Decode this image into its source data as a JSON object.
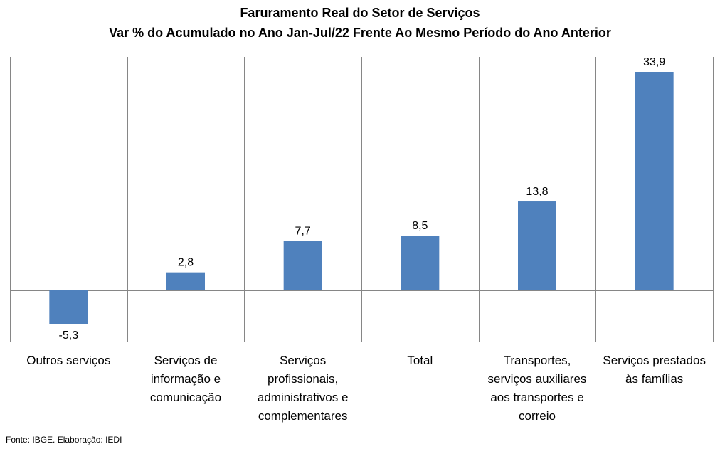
{
  "chart_data": {
    "type": "bar",
    "title": "Faruramento Real do Setor de Serviços",
    "subtitle": "Var % do Acumulado no Ano Jan-Jul/22 Frente Ao Mesmo Período do Ano Anterior",
    "categories": [
      [
        "Outros serviços"
      ],
      [
        "Serviços de",
        "informação e",
        "comunicação"
      ],
      [
        "Serviços",
        "profissionais,",
        "administrativos e",
        "complementares"
      ],
      [
        "Total"
      ],
      [
        "Transportes,",
        "serviços auxiliares",
        "aos transportes e",
        "correio"
      ],
      [
        "Serviços prestados",
        "às famílias"
      ]
    ],
    "values": [
      -5.3,
      2.8,
      7.7,
      8.5,
      13.8,
      33.9
    ],
    "value_labels": [
      "-5,3",
      "2,8",
      "7,7",
      "8,5",
      "13,8",
      "33,9"
    ],
    "ylim": [
      -8,
      38
    ],
    "bar_color": "#4f81bd",
    "grid": false,
    "legend": "none"
  },
  "source": "Fonte: IBGE. Elaboração: IEDI"
}
